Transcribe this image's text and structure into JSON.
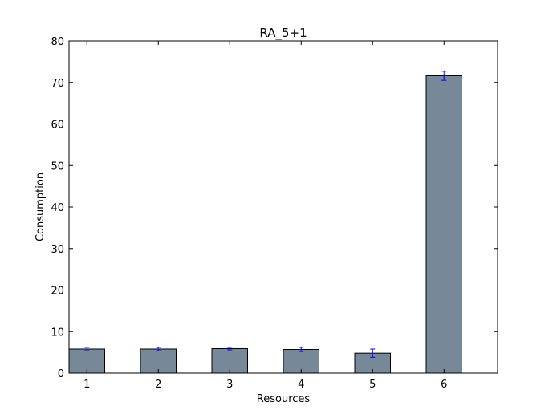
{
  "chart_data": {
    "type": "bar",
    "title": "RA_5+1",
    "xlabel": "Resources",
    "ylabel": "Consumption",
    "categories": [
      "1",
      "2",
      "3",
      "4",
      "5",
      "6"
    ],
    "values": [
      5.8,
      5.8,
      5.9,
      5.7,
      4.8,
      71.6
    ],
    "errors": [
      0.4,
      0.4,
      0.3,
      0.5,
      1.0,
      1.1
    ],
    "ylim": [
      0,
      80
    ],
    "yticks": [
      "0",
      "10",
      "20",
      "30",
      "40",
      "50",
      "60",
      "70",
      "80"
    ],
    "bar_color": "#778899",
    "bar_edge_color": "#000000",
    "error_color": "#0000ff",
    "grid": false,
    "legend": null
  }
}
